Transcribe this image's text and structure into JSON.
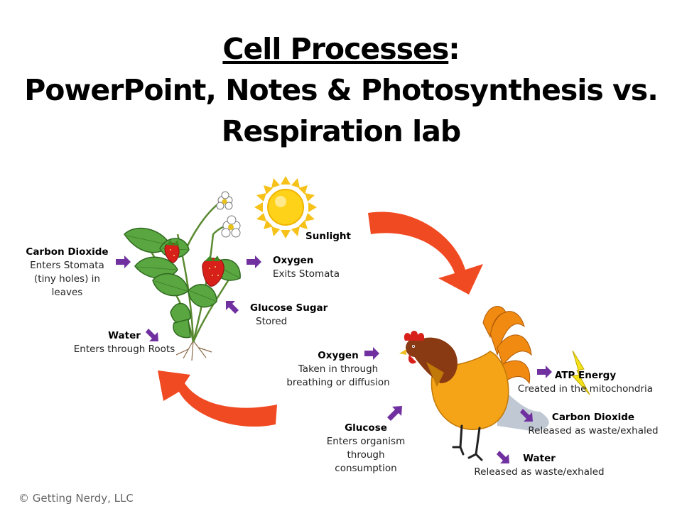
{
  "title": {
    "part1": "Cell Processes",
    "part1_suffix": ":",
    "line2": "PowerPoint, Notes & Photosynthesis vs.",
    "line3": "Respiration lab"
  },
  "plant_labels": {
    "sunlight": "Sunlight",
    "carbon_dioxide": {
      "heading": "Carbon Dioxide",
      "desc": "Enters Stomata\n(tiny holes) in\nleaves"
    },
    "oxygen": {
      "heading": "Oxygen",
      "desc": "Exits Stomata"
    },
    "glucose_sugar": {
      "heading": "Glucose Sugar",
      "desc": "Stored"
    },
    "water": {
      "heading": "Water",
      "desc": "Enters through  Roots"
    }
  },
  "animal_labels": {
    "oxygen": {
      "heading": "Oxygen",
      "desc": "Taken in through\nbreathing or diffusion"
    },
    "glucose": {
      "heading": "Glucose",
      "desc": "Enters organism\nthrough\nconsumption"
    },
    "atp": {
      "heading": "ATP Energy",
      "desc": "Created in the mitochondria"
    },
    "carbon_dioxide": {
      "heading": "Carbon Dioxide",
      "desc": "Released as waste/exhaled"
    },
    "water": {
      "heading": "Water",
      "desc": "Released as waste/exhaled"
    }
  },
  "copyright": "© Getting Nerdy, LLC",
  "colors": {
    "cycle_arrow": "#f04a22",
    "small_arrow": "#7030a0",
    "sun": "#ffd21a",
    "leaf": "#5aa640",
    "strawberry": "#d8201a",
    "rooster_body": "#f5a418",
    "rooster_neck": "#8a3a12",
    "tail": "#f08a10"
  }
}
